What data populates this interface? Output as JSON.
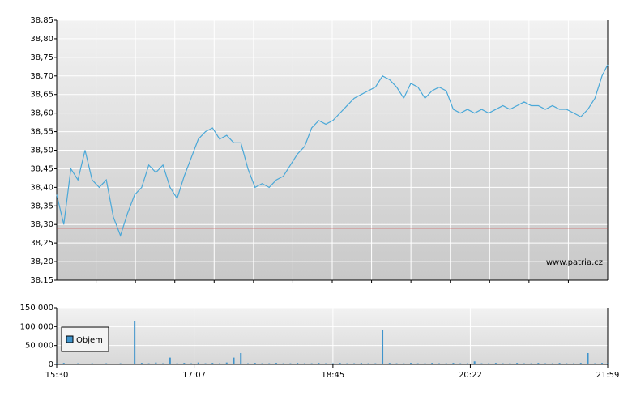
{
  "chart_data": [
    {
      "type": "line",
      "watermark": "www.patria.cz",
      "xlim": [
        930,
        1319
      ],
      "ylim": [
        38.15,
        38.85
      ],
      "yticks": [
        {
          "value": 38.15,
          "label": "38,15"
        },
        {
          "value": 38.2,
          "label": "38,20"
        },
        {
          "value": 38.25,
          "label": "38,25"
        },
        {
          "value": 38.3,
          "label": "38,30"
        },
        {
          "value": 38.35,
          "label": "38,35"
        },
        {
          "value": 38.4,
          "label": "38,40"
        },
        {
          "value": 38.45,
          "label": "38,45"
        },
        {
          "value": 38.5,
          "label": "38,50"
        },
        {
          "value": 38.55,
          "label": "38,55"
        },
        {
          "value": 38.6,
          "label": "38,60"
        },
        {
          "value": 38.65,
          "label": "38,65"
        },
        {
          "value": 38.7,
          "label": "38,70"
        },
        {
          "value": 38.75,
          "label": "38,75"
        },
        {
          "value": 38.8,
          "label": "38,80"
        },
        {
          "value": 38.85,
          "label": "38,85"
        }
      ],
      "reference_line": {
        "value": 38.29,
        "color": "#d03030"
      },
      "grid": true,
      "x": [
        930,
        935,
        940,
        945,
        950,
        955,
        960,
        965,
        970,
        975,
        980,
        985,
        990,
        995,
        1000,
        1005,
        1010,
        1015,
        1020,
        1025,
        1030,
        1035,
        1040,
        1045,
        1050,
        1055,
        1060,
        1065,
        1070,
        1075,
        1080,
        1085,
        1090,
        1095,
        1100,
        1105,
        1110,
        1115,
        1120,
        1125,
        1130,
        1135,
        1140,
        1145,
        1150,
        1155,
        1160,
        1165,
        1170,
        1175,
        1180,
        1185,
        1190,
        1195,
        1200,
        1205,
        1210,
        1215,
        1220,
        1225,
        1230,
        1235,
        1240,
        1245,
        1250,
        1255,
        1260,
        1265,
        1270,
        1275,
        1280,
        1285,
        1290,
        1295,
        1300,
        1305,
        1310,
        1315,
        1319
      ],
      "series": [
        {
          "color": "#4aa8d8",
          "values": [
            38.38,
            38.3,
            38.45,
            38.42,
            38.5,
            38.42,
            38.4,
            38.42,
            38.32,
            38.27,
            38.33,
            38.38,
            38.4,
            38.46,
            38.44,
            38.46,
            38.4,
            38.37,
            38.43,
            38.48,
            38.53,
            38.55,
            38.56,
            38.53,
            38.54,
            38.52,
            38.52,
            38.45,
            38.4,
            38.41,
            38.4,
            38.42,
            38.43,
            38.46,
            38.49,
            38.51,
            38.56,
            38.58,
            38.57,
            38.58,
            38.6,
            38.62,
            38.64,
            38.65,
            38.66,
            38.67,
            38.7,
            38.69,
            38.67,
            38.64,
            38.68,
            38.67,
            38.64,
            38.66,
            38.67,
            38.66,
            38.61,
            38.6,
            38.61,
            38.6,
            38.61,
            38.6,
            38.61,
            38.62,
            38.61,
            38.62,
            38.63,
            38.62,
            38.62,
            38.61,
            38.62,
            38.61,
            38.61,
            38.6,
            38.59,
            38.61,
            38.64,
            38.7,
            38.73
          ]
        }
      ]
    },
    {
      "type": "bar",
      "xlim": [
        930,
        1319
      ],
      "ylim": [
        0,
        150000
      ],
      "xticks": [
        {
          "value": 930,
          "label": "15:30"
        },
        {
          "value": 1027,
          "label": "17:07"
        },
        {
          "value": 1125,
          "label": "18:45"
        },
        {
          "value": 1222,
          "label": "20:22"
        },
        {
          "value": 1319,
          "label": "21:59"
        }
      ],
      "yticks": [
        0,
        {
          "value": 50000,
          "label": "50 000"
        },
        {
          "value": 100000,
          "label": "100 000"
        },
        {
          "value": 150000,
          "label": "150 000"
        }
      ],
      "grid": true,
      "legend": "top-left",
      "x": [
        930,
        935,
        940,
        945,
        950,
        955,
        960,
        965,
        970,
        975,
        980,
        985,
        990,
        995,
        1000,
        1005,
        1010,
        1015,
        1020,
        1025,
        1030,
        1035,
        1040,
        1045,
        1050,
        1055,
        1060,
        1065,
        1070,
        1075,
        1080,
        1085,
        1090,
        1095,
        1100,
        1105,
        1110,
        1115,
        1120,
        1125,
        1130,
        1135,
        1140,
        1145,
        1150,
        1155,
        1160,
        1165,
        1170,
        1175,
        1180,
        1185,
        1190,
        1195,
        1200,
        1205,
        1210,
        1215,
        1220,
        1225,
        1230,
        1235,
        1240,
        1245,
        1250,
        1255,
        1260,
        1265,
        1270,
        1275,
        1280,
        1285,
        1290,
        1295,
        1300,
        1305,
        1310,
        1315,
        1319
      ],
      "series": [
        {
          "name": "Objem",
          "color": "#3f94cc",
          "values": [
            3000,
            4000,
            2000,
            3000,
            2000,
            3000,
            2000,
            3000,
            2000,
            3000,
            2000,
            115000,
            4000,
            3000,
            5000,
            3000,
            18000,
            3000,
            4000,
            3000,
            5000,
            3000,
            4000,
            3000,
            5000,
            18000,
            30000,
            3000,
            4000,
            3000,
            3000,
            4000,
            3000,
            3000,
            4000,
            3000,
            3000,
            4000,
            3000,
            3000,
            4000,
            3000,
            3000,
            4000,
            3000,
            3000,
            90000,
            4000,
            3000,
            3000,
            4000,
            3000,
            3000,
            4000,
            3000,
            3000,
            4000,
            3000,
            3000,
            8000,
            3000,
            3000,
            4000,
            3000,
            3000,
            4000,
            3000,
            3000,
            4000,
            3000,
            3000,
            4000,
            3000,
            3000,
            4000,
            30000,
            3000,
            4000,
            3000
          ]
        }
      ]
    }
  ]
}
